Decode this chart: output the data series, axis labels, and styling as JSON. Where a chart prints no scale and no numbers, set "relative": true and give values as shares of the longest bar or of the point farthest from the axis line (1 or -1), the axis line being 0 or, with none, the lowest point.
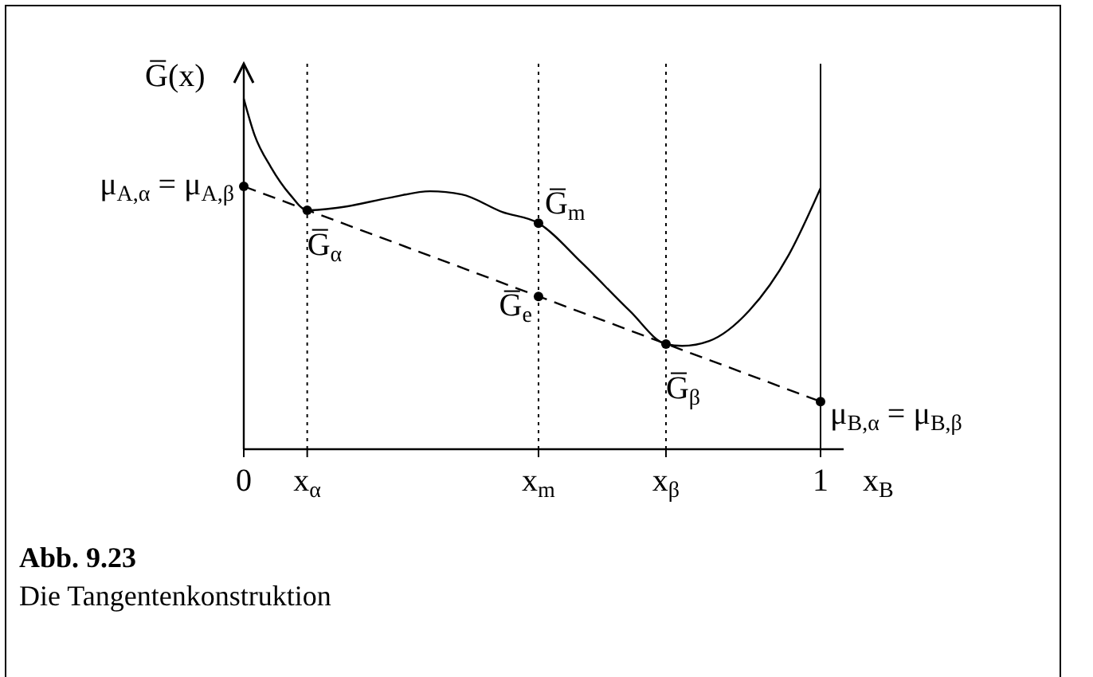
{
  "chart_data": {
    "type": "line",
    "title": "Abb. 9.23",
    "subtitle": "Die Tangentenkonstruktion",
    "xlabel": "x$_{B}$",
    "ylabel": "G̅(x)",
    "relative": true,
    "xlim": [
      0,
      1.04
    ],
    "xticks": [
      0,
      {
        "value": 0.11,
        "label": "x$_{α}$"
      },
      {
        "value": 0.511,
        "label": "x$_{m}$"
      },
      {
        "value": 0.732,
        "label": "x$_{β}$"
      },
      1
    ],
    "series": [
      {
        "color": "#000000",
        "line_style": "solid",
        "x": [
          0,
          0.019,
          0.047,
          0.08,
          0.11,
          0.171,
          0.254,
          0.323,
          0.378,
          0.448,
          0.511,
          0.586,
          0.669,
          0.732,
          0.76,
          0.807,
          0.876,
          0.945,
          1
        ],
        "values": [
          1,
          0.895,
          0.805,
          0.727,
          0.682,
          0.691,
          0.718,
          0.736,
          0.727,
          0.677,
          0.645,
          0.532,
          0.395,
          0.3,
          0.295,
          0.309,
          0.395,
          0.555,
          0.745
        ]
      },
      {
        "color": "#000000",
        "line_style": "dashed",
        "x": [
          0,
          1
        ],
        "values": [
          0.75,
          0.136
        ]
      },
      {
        "type": "scatter",
        "color": "#000000",
        "marker": "circle",
        "x": [
          0,
          0.11,
          0.511,
          0.511,
          0.732,
          1
        ],
        "values": [
          0.75,
          0.682,
          0.645,
          0.436,
          0.3,
          0.136
        ]
      }
    ],
    "ref_lines": [
      {
        "axis": "x",
        "value": 0.11,
        "line_style": "dotted"
      },
      {
        "axis": "x",
        "value": 0.511,
        "line_style": "dotted"
      },
      {
        "axis": "x",
        "value": 0.732,
        "line_style": "dotted"
      },
      {
        "axis": "x",
        "value": 1,
        "line_style": "solid"
      }
    ],
    "annotations": [
      {
        "text": "μ$_{A,α}$ = μ$_{A,β}$",
        "x": 0,
        "y": 0.75
      },
      {
        "text": "G̅$_{α}$",
        "x": 0.11,
        "y": 0.682
      },
      {
        "text": "G̅$_{m}$",
        "x": 0.511,
        "y": 0.645
      },
      {
        "text": "G̅$_{e}$",
        "x": 0.511,
        "y": 0.436
      },
      {
        "text": "G̅$_{β}$",
        "x": 0.732,
        "y": 0.3
      },
      {
        "text": "μ$_{B,α}$ = μ$_{B,β}$",
        "x": 1,
        "y": 0.136
      }
    ],
    "grid": false
  }
}
